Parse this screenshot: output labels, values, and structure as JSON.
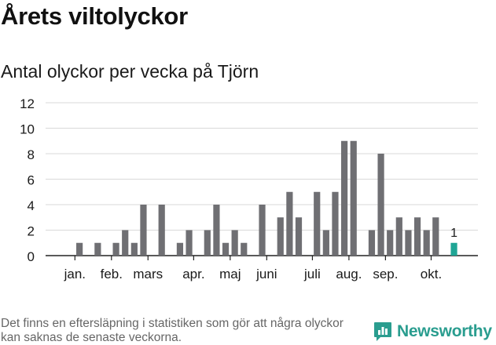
{
  "header": {
    "title": "Årets viltolyckor",
    "subtitle": "Antal olyckor per vecka på Tjörn"
  },
  "footer": {
    "note": "Det finns en eftersläpning i statistiken som gör att några olyckor kan saknas de senaste veckorna.",
    "brand": "Newsworthy"
  },
  "colors": {
    "bar": "#6f6f73",
    "highlight": "#1fa595",
    "brand": "#2a9d8f"
  },
  "chart_data": {
    "type": "bar",
    "title": "Antal olyckor per vecka på Tjörn",
    "xlabel": "",
    "ylabel": "",
    "ylim": [
      0,
      12
    ],
    "yticks": [
      0,
      2,
      4,
      6,
      8,
      10,
      12
    ],
    "grid": true,
    "weeks": [
      1,
      2,
      3,
      4,
      5,
      6,
      7,
      8,
      9,
      10,
      11,
      12,
      13,
      14,
      15,
      16,
      17,
      18,
      19,
      20,
      21,
      22,
      23,
      24,
      25,
      26,
      27,
      28,
      29,
      30,
      31,
      32,
      33,
      34,
      35,
      36,
      37,
      38,
      39,
      40,
      41,
      42,
      43,
      44
    ],
    "values": [
      0,
      1,
      0,
      1,
      0,
      1,
      2,
      1,
      4,
      0,
      4,
      0,
      1,
      2,
      0,
      2,
      4,
      1,
      2,
      1,
      0,
      4,
      0,
      3,
      5,
      3,
      0,
      5,
      2,
      5,
      9,
      9,
      0,
      2,
      8,
      2,
      3,
      2,
      3,
      2,
      3,
      0,
      1,
      null
    ],
    "highlight_index": 42,
    "highlight_label": "1",
    "month_labels": [
      {
        "label": "jan.",
        "week": 1.5
      },
      {
        "label": "feb.",
        "week": 5.5
      },
      {
        "label": "mars",
        "week": 9.5
      },
      {
        "label": "apr.",
        "week": 14.5
      },
      {
        "label": "maj",
        "week": 18.5
      },
      {
        "label": "juni",
        "week": 22.5
      },
      {
        "label": "juli",
        "week": 27.5
      },
      {
        "label": "aug.",
        "week": 31.5
      },
      {
        "label": "sep.",
        "week": 35.5
      },
      {
        "label": "okt.",
        "week": 40.5
      }
    ]
  }
}
